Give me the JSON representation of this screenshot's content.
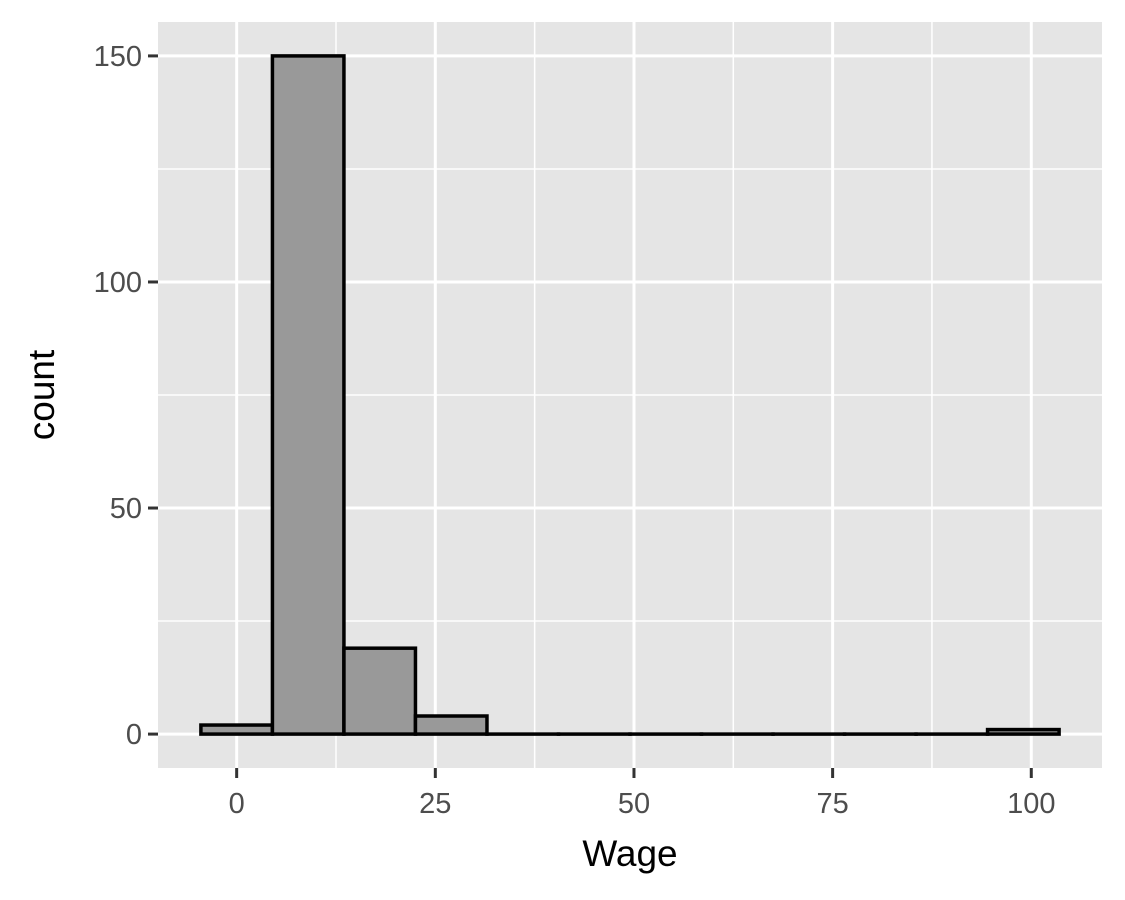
{
  "chart_data": {
    "type": "bar",
    "subtype": "histogram",
    "title": "",
    "xlabel": "Wage",
    "ylabel": "count",
    "bins": [
      {
        "x_start": -4.5,
        "x_end": 4.5,
        "count": 2
      },
      {
        "x_start": 4.5,
        "x_end": 13.5,
        "count": 150
      },
      {
        "x_start": 13.5,
        "x_end": 22.5,
        "count": 19
      },
      {
        "x_start": 22.5,
        "x_end": 31.5,
        "count": 4
      },
      {
        "x_start": 31.5,
        "x_end": 40.5,
        "count": 0
      },
      {
        "x_start": 40.5,
        "x_end": 49.5,
        "count": 0
      },
      {
        "x_start": 49.5,
        "x_end": 58.5,
        "count": 0
      },
      {
        "x_start": 58.5,
        "x_end": 67.5,
        "count": 0
      },
      {
        "x_start": 67.5,
        "x_end": 76.5,
        "count": 0
      },
      {
        "x_start": 76.5,
        "x_end": 85.5,
        "count": 0
      },
      {
        "x_start": 85.5,
        "x_end": 94.5,
        "count": 0
      },
      {
        "x_start": 94.5,
        "x_end": 103.5,
        "count": 1
      }
    ],
    "xlim": [
      -9.9,
      108.9
    ],
    "ylim": [
      -7.5,
      157.5
    ],
    "x_ticks": [
      0,
      25,
      50,
      75,
      100
    ],
    "x_tick_labels": [
      "0",
      "25",
      "50",
      "75",
      "100"
    ],
    "y_ticks": [
      0,
      50,
      100,
      150
    ],
    "y_tick_labels": [
      "0",
      "50",
      "100",
      "150"
    ],
    "grid": true,
    "legend": "none",
    "colors": {
      "panel_background": "#e5e5e5",
      "grid": "#ffffff",
      "bar_fill": "#999999",
      "bar_outline": "#000000",
      "tick_mark": "#333333"
    }
  }
}
